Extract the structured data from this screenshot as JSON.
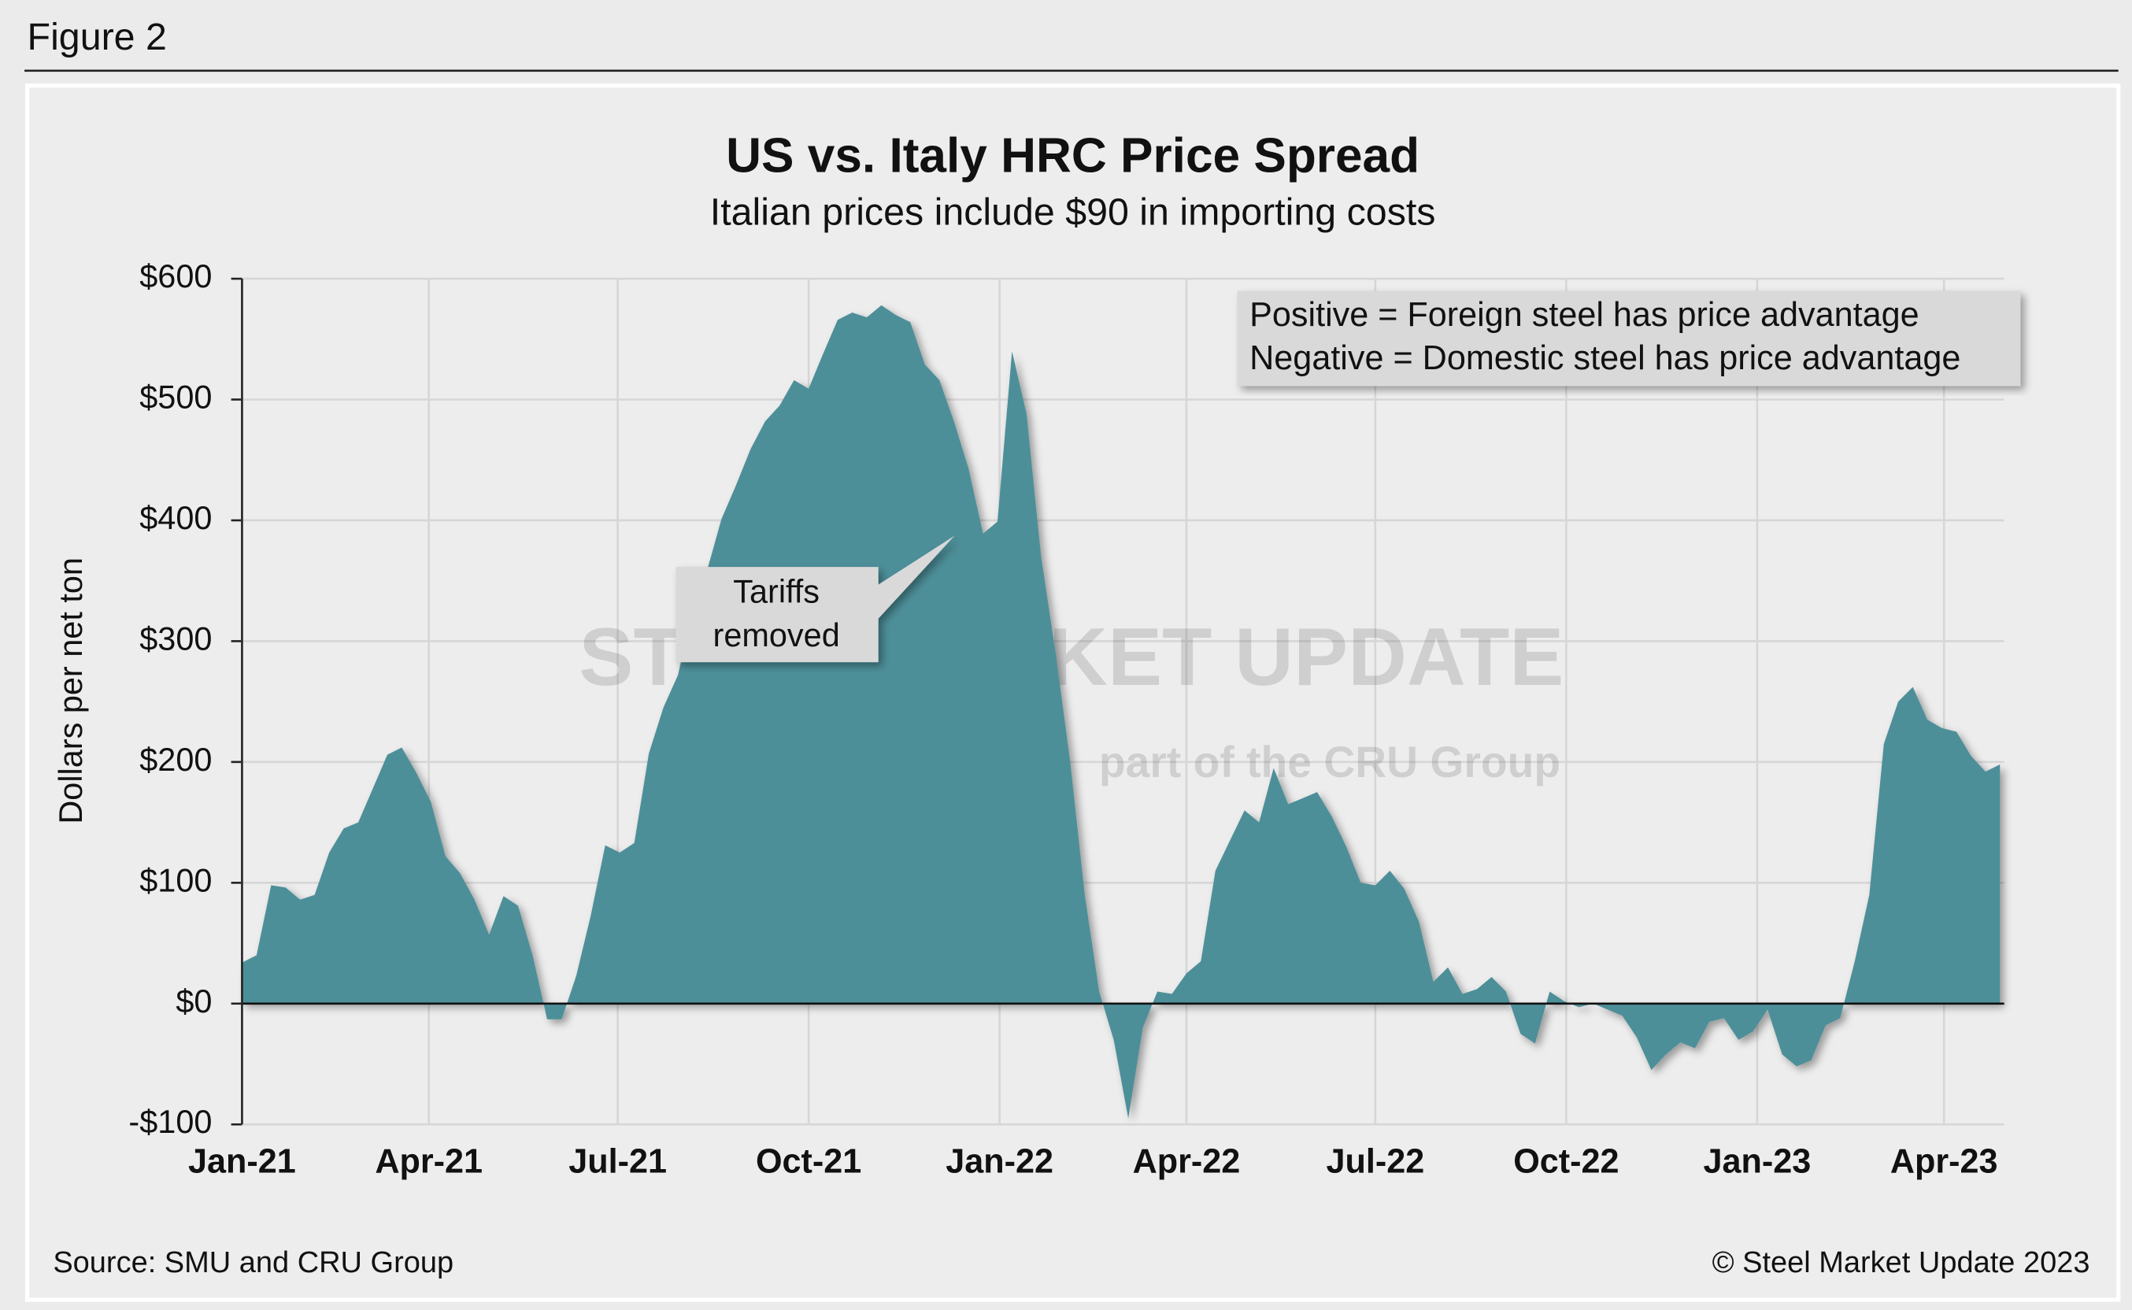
{
  "figure_label": "Figure 2",
  "chart_data": {
    "type": "area",
    "title": "US vs. Italy HRC Price Spread",
    "subtitle": "Italian prices include $90 in importing costs",
    "y_label": "Dollars per net ton",
    "legend_note": [
      "Positive = Foreign steel has price advantage",
      "Negative = Domestic steel has price advantage"
    ],
    "annotation": [
      "Tariffs",
      "removed"
    ],
    "watermark": [
      "STEEL MARKET UPDATE",
      "part of the CRU Group"
    ],
    "source": "Source: SMU and CRU Group",
    "copyright": "© Steel Market Update 2023",
    "color": "#4e8f99",
    "grid": true,
    "xlim": [
      0,
      849
    ],
    "ylim": [
      -100,
      600
    ],
    "yticks": [
      {
        "value": -100,
        "label": "-$100"
      },
      {
        "value": 0,
        "label": "$0"
      },
      {
        "value": 100,
        "label": "$100"
      },
      {
        "value": 200,
        "label": "$200"
      },
      {
        "value": 300,
        "label": "$300"
      },
      {
        "value": 400,
        "label": "$400"
      },
      {
        "value": 500,
        "label": "$500"
      },
      {
        "value": 600,
        "label": "$600"
      }
    ],
    "xticks": [
      {
        "value": 0,
        "label": "Jan-21"
      },
      {
        "value": 90,
        "label": "Apr-21"
      },
      {
        "value": 181,
        "label": "Jul-21"
      },
      {
        "value": 273,
        "label": "Oct-21"
      },
      {
        "value": 365,
        "label": "Jan-22"
      },
      {
        "value": 455,
        "label": "Apr-22"
      },
      {
        "value": 546,
        "label": "Jul-22"
      },
      {
        "value": 638,
        "label": "Oct-22"
      },
      {
        "value": 730,
        "label": "Jan-23"
      },
      {
        "value": 820,
        "label": "Apr-23"
      }
    ],
    "x": [
      0,
      7,
      14,
      21,
      28,
      35,
      42,
      49,
      56,
      63,
      70,
      77,
      84,
      91,
      98,
      105,
      112,
      119,
      126,
      133,
      140,
      147,
      154,
      161,
      168,
      175,
      182,
      189,
      196,
      203,
      210,
      217,
      224,
      231,
      238,
      245,
      252,
      259,
      266,
      273,
      280,
      287,
      294,
      301,
      308,
      315,
      322,
      329,
      336,
      343,
      350,
      357,
      364,
      371,
      378,
      385,
      392,
      399,
      406,
      413,
      420,
      427,
      434,
      441,
      448,
      455,
      462,
      469,
      476,
      483,
      490,
      497,
      504,
      511,
      518,
      525,
      532,
      539,
      546,
      553,
      560,
      567,
      574,
      581,
      588,
      595,
      602,
      609,
      616,
      623,
      630,
      637,
      644,
      651,
      658,
      665,
      672,
      679,
      686,
      693,
      700,
      707,
      714,
      721,
      728,
      735,
      742,
      749,
      756,
      763,
      770,
      777,
      784,
      791,
      798,
      805,
      812,
      819,
      826,
      833,
      840,
      847
    ],
    "values": [
      34,
      40,
      98,
      96,
      86,
      90,
      125,
      145,
      150,
      178,
      206,
      212,
      191,
      167,
      122,
      108,
      86,
      57,
      89,
      81,
      40,
      -13,
      -13,
      23,
      73,
      131,
      125,
      133,
      207,
      245,
      272,
      324,
      358,
      401,
      429,
      459,
      482,
      495,
      516,
      509,
      538,
      566,
      572,
      568,
      578,
      570,
      564,
      529,
      516,
      482,
      443,
      389,
      399,
      540,
      488,
      370,
      290,
      200,
      90,
      10,
      -30,
      -95,
      -20,
      10,
      8,
      25,
      35,
      110,
      135,
      160,
      150,
      195,
      165,
      170,
      175,
      155,
      130,
      100,
      98,
      110,
      95,
      68,
      18,
      30,
      8,
      12,
      22,
      10,
      -25,
      -33,
      10,
      2,
      -3,
      0,
      -5,
      -10,
      -28,
      -55,
      -42,
      -32,
      -37,
      -15,
      -12,
      -30,
      -23,
      -5,
      -42,
      -52,
      -47,
      -18,
      -12,
      35,
      90,
      215,
      250,
      262,
      235,
      228,
      225,
      205,
      192,
      198
    ]
  }
}
